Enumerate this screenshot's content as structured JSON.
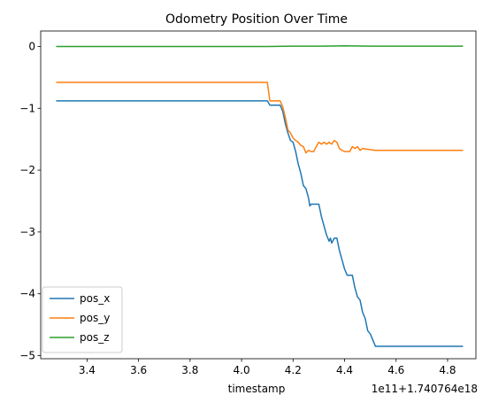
{
  "chart_data": {
    "type": "line",
    "title": "Odometry Position Over Time",
    "xlabel": "timestamp",
    "ylabel": "",
    "x_offset_label": "1e11+1.740764e18",
    "xlim": [
      3.22,
      4.91
    ],
    "ylim": [
      -5.05,
      0.25
    ],
    "x_ticks": [
      3.4,
      3.6,
      3.8,
      4.0,
      4.2,
      4.4,
      4.6,
      4.8
    ],
    "x_tick_labels": [
      "3.4",
      "3.6",
      "3.8",
      "4.0",
      "4.2",
      "4.4",
      "4.6",
      "4.8"
    ],
    "y_ticks": [
      0,
      -1,
      -2,
      -3,
      -4,
      -5
    ],
    "y_tick_labels": [
      "0",
      "−1",
      "−2",
      "−3",
      "−4",
      "−5"
    ],
    "grid": false,
    "legend_position": "lower-left",
    "series": [
      {
        "name": "pos_x",
        "color": "#1f77b4",
        "points": [
          [
            3.28,
            -0.88
          ],
          [
            4.1,
            -0.88
          ],
          [
            4.11,
            -0.95
          ],
          [
            4.15,
            -0.95
          ],
          [
            4.16,
            -1.05
          ],
          [
            4.17,
            -1.25
          ],
          [
            4.18,
            -1.4
          ],
          [
            4.19,
            -1.52
          ],
          [
            4.2,
            -1.55
          ],
          [
            4.21,
            -1.7
          ],
          [
            4.22,
            -1.9
          ],
          [
            4.23,
            -2.05
          ],
          [
            4.24,
            -2.25
          ],
          [
            4.25,
            -2.3
          ],
          [
            4.26,
            -2.45
          ],
          [
            4.265,
            -2.58
          ],
          [
            4.27,
            -2.55
          ],
          [
            4.3,
            -2.55
          ],
          [
            4.31,
            -2.75
          ],
          [
            4.32,
            -2.9
          ],
          [
            4.33,
            -3.05
          ],
          [
            4.34,
            -3.15
          ],
          [
            4.345,
            -3.1
          ],
          [
            4.35,
            -3.18
          ],
          [
            4.36,
            -3.1
          ],
          [
            4.37,
            -3.1
          ],
          [
            4.38,
            -3.3
          ],
          [
            4.39,
            -3.45
          ],
          [
            4.4,
            -3.6
          ],
          [
            4.41,
            -3.7
          ],
          [
            4.43,
            -3.7
          ],
          [
            4.44,
            -3.9
          ],
          [
            4.45,
            -4.05
          ],
          [
            4.46,
            -4.1
          ],
          [
            4.47,
            -4.3
          ],
          [
            4.48,
            -4.4
          ],
          [
            4.49,
            -4.6
          ],
          [
            4.5,
            -4.65
          ],
          [
            4.51,
            -4.75
          ],
          [
            4.52,
            -4.85
          ],
          [
            4.86,
            -4.85
          ]
        ]
      },
      {
        "name": "pos_y",
        "color": "#ff7f0e",
        "points": [
          [
            3.28,
            -0.58
          ],
          [
            4.1,
            -0.58
          ],
          [
            4.11,
            -0.88
          ],
          [
            4.15,
            -0.88
          ],
          [
            4.16,
            -0.98
          ],
          [
            4.17,
            -1.15
          ],
          [
            4.18,
            -1.35
          ],
          [
            4.19,
            -1.4
          ],
          [
            4.2,
            -1.48
          ],
          [
            4.21,
            -1.52
          ],
          [
            4.22,
            -1.55
          ],
          [
            4.23,
            -1.6
          ],
          [
            4.24,
            -1.62
          ],
          [
            4.25,
            -1.72
          ],
          [
            4.26,
            -1.68
          ],
          [
            4.27,
            -1.7
          ],
          [
            4.28,
            -1.7
          ],
          [
            4.29,
            -1.62
          ],
          [
            4.3,
            -1.55
          ],
          [
            4.31,
            -1.58
          ],
          [
            4.32,
            -1.55
          ],
          [
            4.33,
            -1.58
          ],
          [
            4.34,
            -1.55
          ],
          [
            4.35,
            -1.58
          ],
          [
            4.36,
            -1.52
          ],
          [
            4.37,
            -1.55
          ],
          [
            4.38,
            -1.65
          ],
          [
            4.39,
            -1.68
          ],
          [
            4.4,
            -1.7
          ],
          [
            4.42,
            -1.7
          ],
          [
            4.43,
            -1.62
          ],
          [
            4.44,
            -1.65
          ],
          [
            4.45,
            -1.62
          ],
          [
            4.46,
            -1.68
          ],
          [
            4.47,
            -1.65
          ],
          [
            4.5,
            -1.67
          ],
          [
            4.52,
            -1.68
          ],
          [
            4.86,
            -1.68
          ]
        ]
      },
      {
        "name": "pos_z",
        "color": "#2ca02c",
        "points": [
          [
            3.28,
            0.0
          ],
          [
            4.1,
            0.0
          ],
          [
            4.2,
            0.005
          ],
          [
            4.3,
            0.005
          ],
          [
            4.4,
            0.01
          ],
          [
            4.5,
            0.005
          ],
          [
            4.86,
            0.005
          ]
        ]
      }
    ]
  }
}
